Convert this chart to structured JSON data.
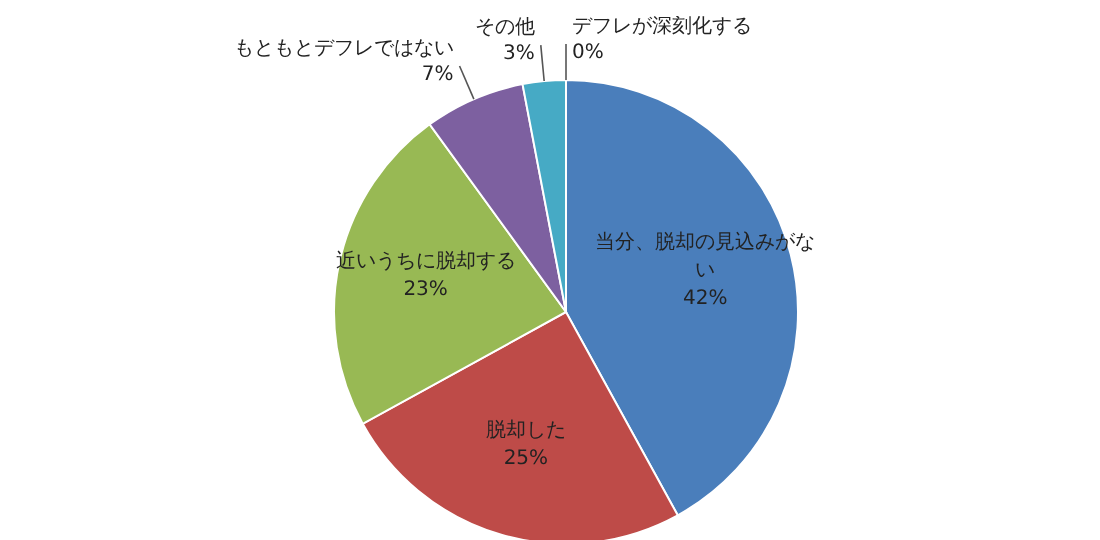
{
  "chart_data": {
    "type": "pie",
    "categories": [
      "当分、脱却の見込みがない",
      "脱却した",
      "近いうちに脱却する",
      "もともとデフレではない",
      "その他",
      "デフレが深刻化する"
    ],
    "values": [
      42,
      25,
      23,
      7,
      3,
      0
    ],
    "colors": [
      "#4a7ebb",
      "#be4b48",
      "#98b954",
      "#7d60a0",
      "#46aac5",
      "#f79646"
    ],
    "value_labels": [
      "42%",
      "25%",
      "23%",
      "7%",
      "3%",
      "0%"
    ]
  }
}
